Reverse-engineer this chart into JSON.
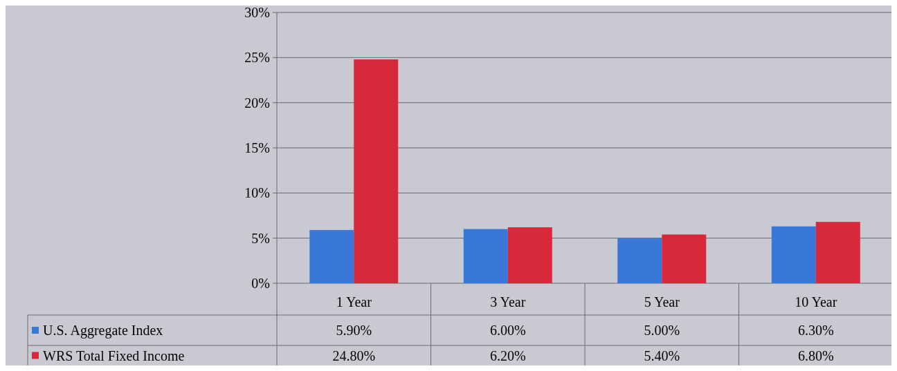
{
  "chart_data": {
    "type": "bar",
    "categories": [
      "1 Year",
      "3 Year",
      "5 Year",
      "10 Year"
    ],
    "series": [
      {
        "name": "U.S. Aggregate Index",
        "color": "#3a78d8",
        "values": [
          5.9,
          6.0,
          5.0,
          6.3
        ],
        "value_labels": [
          "5.90%",
          "6.00%",
          "5.00%",
          "6.30%"
        ]
      },
      {
        "name": "WRS Total Fixed Income",
        "color": "#d8283c",
        "values": [
          24.8,
          6.2,
          5.4,
          6.8
        ],
        "value_labels": [
          "24.80%",
          "6.20%",
          "5.40%",
          "6.80%"
        ]
      }
    ],
    "ylim": [
      0,
      30
    ],
    "yticks": [
      {
        "value": 0,
        "label": "0%"
      },
      {
        "value": 5,
        "label": "5%"
      },
      {
        "value": 10,
        "label": "10%"
      },
      {
        "value": 15,
        "label": "15%"
      },
      {
        "value": 20,
        "label": "20%"
      },
      {
        "value": 25,
        "label": "25%"
      },
      {
        "value": 30,
        "label": "30%"
      }
    ],
    "grid": "y",
    "legend": "bottom"
  }
}
